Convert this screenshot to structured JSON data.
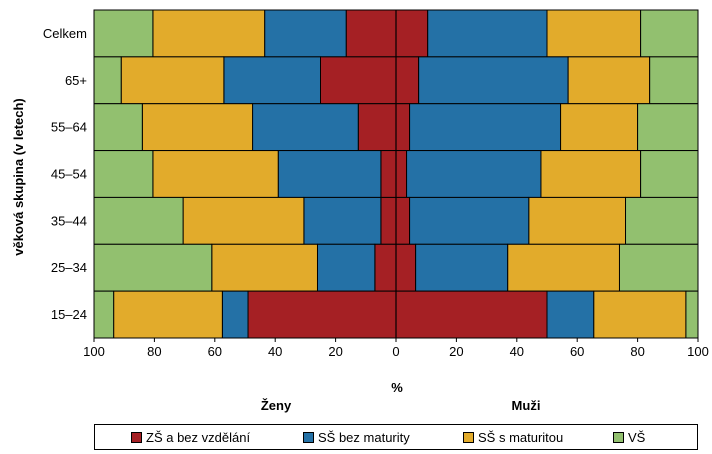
{
  "chart_data": {
    "type": "bar",
    "orientation": "horizontal",
    "stacked": true,
    "layout": "diverging population pyramid",
    "categories": [
      "Celkem",
      "65+",
      "55–64",
      "45–54",
      "35–44",
      "25–34",
      "15–24"
    ],
    "ylabel": "věková skupina (v letech)",
    "xlabel": "%",
    "x_ticks": [
      "100",
      "80",
      "60",
      "40",
      "20",
      "0",
      "20",
      "40",
      "60",
      "80",
      "100"
    ],
    "xlim": [
      -100,
      100
    ],
    "side_labels": {
      "left": "Ženy",
      "right": "Muži"
    },
    "series": [
      {
        "name": "ZŠ a bez vzdělání",
        "color": "#a52024",
        "women": [
          16.5,
          25.0,
          12.5,
          5.0,
          5.0,
          7.0,
          49.0
        ],
        "men": [
          10.5,
          7.5,
          4.5,
          3.5,
          4.5,
          6.5,
          50.0
        ]
      },
      {
        "name": "SŠ bez maturity",
        "color": "#2471a6",
        "women": [
          27.0,
          32.0,
          35.0,
          34.0,
          25.5,
          19.0,
          8.5
        ],
        "men": [
          39.5,
          49.5,
          50.0,
          44.5,
          39.5,
          30.5,
          15.5
        ]
      },
      {
        "name": "SŠ s maturitou",
        "color": "#e2ab2b",
        "women": [
          37.0,
          34.0,
          36.5,
          41.5,
          40.0,
          35.0,
          36.0
        ],
        "men": [
          31.0,
          27.0,
          25.5,
          33.0,
          32.0,
          37.0,
          30.5
        ]
      },
      {
        "name": "VŠ",
        "color": "#92c06f",
        "women": [
          19.5,
          9.0,
          16.0,
          19.5,
          29.5,
          39.0,
          6.5
        ],
        "men": [
          19.0,
          16.0,
          20.0,
          19.0,
          24.0,
          26.0,
          4.0
        ]
      }
    ],
    "grid": false,
    "legend_position": "bottom"
  }
}
